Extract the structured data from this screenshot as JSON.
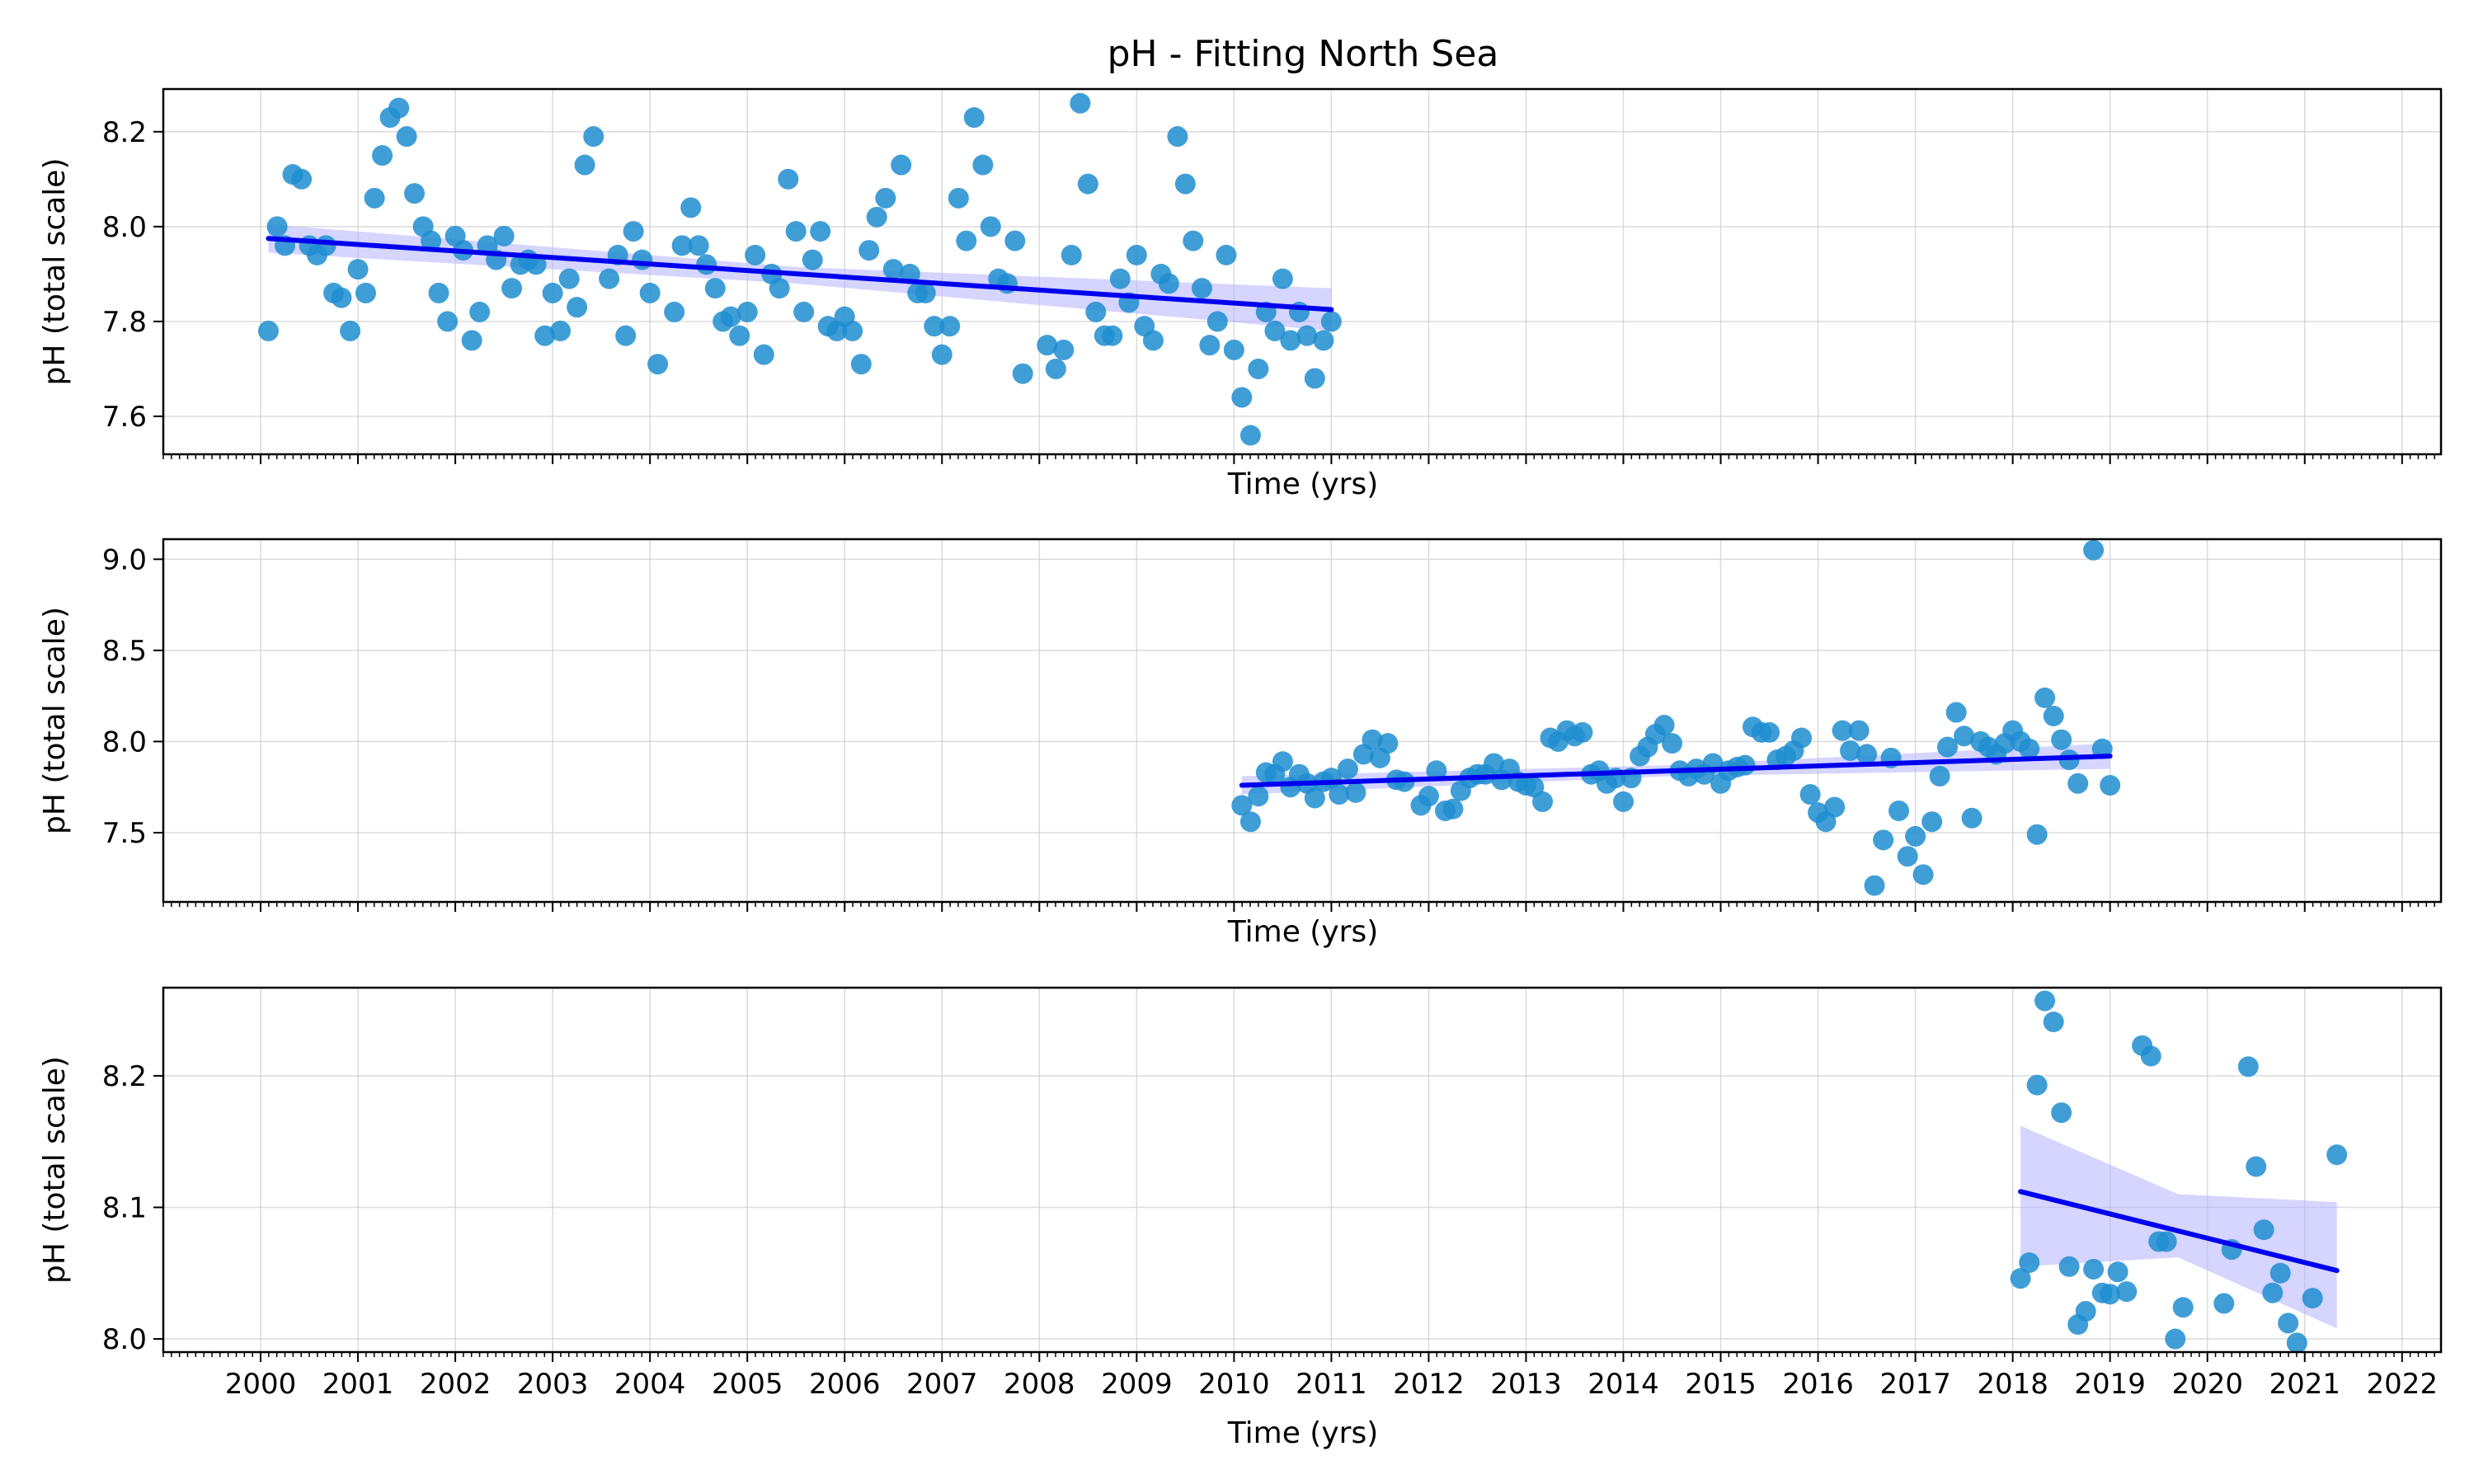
{
  "chart_data": {
    "type": "scatter",
    "title": "pH - Fitting North Sea",
    "xlabel": "Time (yrs)",
    "x_ticks": [
      "2000",
      "2001",
      "2002",
      "2003",
      "2004",
      "2005",
      "2006",
      "2007",
      "2008",
      "2009",
      "2010",
      "2011",
      "2012",
      "2013",
      "2014",
      "2015",
      "2016",
      "2017",
      "2018",
      "2019",
      "2020",
      "2021",
      "2022"
    ],
    "x_range": [
      1999,
      2022.4
    ],
    "grid": true,
    "colors": {
      "points": "#1f8dd0",
      "fit": "#0000ee",
      "band": "#b3b3ff"
    },
    "panels": [
      {
        "ylabel": "pH (total scale)",
        "xlabel": "Time (yrs)",
        "ylim": [
          7.52,
          8.29
        ],
        "yticks": [
          7.6,
          7.8,
          8.0,
          8.2
        ],
        "ytick_labels": [
          "7.6",
          "7.8",
          "8.0",
          "8.2"
        ],
        "fit": {
          "x": [
            2000.08,
            2011.0
          ],
          "y": [
            7.975,
            7.825
          ]
        },
        "band": {
          "x": [
            2000.08,
            2005.5,
            2011.0
          ],
          "upper": [
            8.005,
            7.915,
            7.87
          ],
          "lower": [
            7.945,
            7.88,
            7.78
          ]
        },
        "points": [
          [
            2000.08,
            7.78
          ],
          [
            2000.17,
            8.0
          ],
          [
            2000.25,
            7.96
          ],
          [
            2000.33,
            8.11
          ],
          [
            2000.42,
            8.1
          ],
          [
            2000.5,
            7.96
          ],
          [
            2000.58,
            7.94
          ],
          [
            2000.67,
            7.96
          ],
          [
            2000.75,
            7.86
          ],
          [
            2000.83,
            7.85
          ],
          [
            2000.92,
            7.78
          ],
          [
            2001.0,
            7.91
          ],
          [
            2001.08,
            7.86
          ],
          [
            2001.17,
            8.06
          ],
          [
            2001.25,
            8.15
          ],
          [
            2001.33,
            8.23
          ],
          [
            2001.42,
            8.25
          ],
          [
            2001.5,
            8.19
          ],
          [
            2001.58,
            8.07
          ],
          [
            2001.67,
            8.0
          ],
          [
            2001.75,
            7.97
          ],
          [
            2001.83,
            7.86
          ],
          [
            2001.92,
            7.8
          ],
          [
            2002.0,
            7.98
          ],
          [
            2002.08,
            7.95
          ],
          [
            2002.17,
            7.76
          ],
          [
            2002.25,
            7.82
          ],
          [
            2002.33,
            7.96
          ],
          [
            2002.42,
            7.93
          ],
          [
            2002.5,
            7.98
          ],
          [
            2002.58,
            7.87
          ],
          [
            2002.67,
            7.92
          ],
          [
            2002.75,
            7.93
          ],
          [
            2002.83,
            7.92
          ],
          [
            2002.92,
            7.77
          ],
          [
            2003.0,
            7.86
          ],
          [
            2003.08,
            7.78
          ],
          [
            2003.17,
            7.89
          ],
          [
            2003.25,
            7.83
          ],
          [
            2003.33,
            8.13
          ],
          [
            2003.42,
            8.19
          ],
          [
            2003.58,
            7.89
          ],
          [
            2003.67,
            7.94
          ],
          [
            2003.75,
            7.77
          ],
          [
            2003.83,
            7.99
          ],
          [
            2003.92,
            7.93
          ],
          [
            2004.0,
            7.86
          ],
          [
            2004.08,
            7.71
          ],
          [
            2004.25,
            7.82
          ],
          [
            2004.33,
            7.96
          ],
          [
            2004.42,
            8.04
          ],
          [
            2004.5,
            7.96
          ],
          [
            2004.58,
            7.92
          ],
          [
            2004.67,
            7.87
          ],
          [
            2004.75,
            7.8
          ],
          [
            2004.83,
            7.81
          ],
          [
            2004.92,
            7.77
          ],
          [
            2005.0,
            7.82
          ],
          [
            2005.08,
            7.94
          ],
          [
            2005.17,
            7.73
          ],
          [
            2005.25,
            7.9
          ],
          [
            2005.33,
            7.87
          ],
          [
            2005.42,
            8.1
          ],
          [
            2005.5,
            7.99
          ],
          [
            2005.58,
            7.82
          ],
          [
            2005.67,
            7.93
          ],
          [
            2005.75,
            7.99
          ],
          [
            2005.83,
            7.79
          ],
          [
            2005.92,
            7.78
          ],
          [
            2006.0,
            7.81
          ],
          [
            2006.08,
            7.78
          ],
          [
            2006.17,
            7.71
          ],
          [
            2006.25,
            7.95
          ],
          [
            2006.33,
            8.02
          ],
          [
            2006.42,
            8.06
          ],
          [
            2006.5,
            7.91
          ],
          [
            2006.58,
            8.13
          ],
          [
            2006.67,
            7.9
          ],
          [
            2006.75,
            7.86
          ],
          [
            2006.83,
            7.86
          ],
          [
            2006.92,
            7.79
          ],
          [
            2007.0,
            7.73
          ],
          [
            2007.08,
            7.79
          ],
          [
            2007.17,
            8.06
          ],
          [
            2007.25,
            7.97
          ],
          [
            2007.33,
            8.23
          ],
          [
            2007.42,
            8.13
          ],
          [
            2007.5,
            8.0
          ],
          [
            2007.58,
            7.89
          ],
          [
            2007.67,
            7.88
          ],
          [
            2007.75,
            7.97
          ],
          [
            2007.83,
            7.69
          ],
          [
            2008.08,
            7.75
          ],
          [
            2008.17,
            7.7
          ],
          [
            2008.25,
            7.74
          ],
          [
            2008.33,
            7.94
          ],
          [
            2008.42,
            8.26
          ],
          [
            2008.5,
            8.09
          ],
          [
            2008.58,
            7.82
          ],
          [
            2008.67,
            7.77
          ],
          [
            2008.75,
            7.77
          ],
          [
            2008.83,
            7.89
          ],
          [
            2008.92,
            7.84
          ],
          [
            2009.0,
            7.94
          ],
          [
            2009.08,
            7.79
          ],
          [
            2009.17,
            7.76
          ],
          [
            2009.25,
            7.9
          ],
          [
            2009.33,
            7.88
          ],
          [
            2009.42,
            8.19
          ],
          [
            2009.5,
            8.09
          ],
          [
            2009.58,
            7.97
          ],
          [
            2009.67,
            7.87
          ],
          [
            2009.75,
            7.75
          ],
          [
            2009.83,
            7.8
          ],
          [
            2009.92,
            7.94
          ],
          [
            2010.0,
            7.74
          ],
          [
            2010.08,
            7.64
          ],
          [
            2010.17,
            7.56
          ],
          [
            2010.25,
            7.7
          ],
          [
            2010.33,
            7.82
          ],
          [
            2010.42,
            7.78
          ],
          [
            2010.5,
            7.89
          ],
          [
            2010.58,
            7.76
          ],
          [
            2010.67,
            7.82
          ],
          [
            2010.75,
            7.77
          ],
          [
            2010.83,
            7.68
          ],
          [
            2010.92,
            7.76
          ],
          [
            2011.0,
            7.8
          ]
        ]
      },
      {
        "ylabel": "pH (total scale)",
        "xlabel": "Time (yrs)",
        "ylim": [
          7.12,
          9.11
        ],
        "yticks": [
          7.5,
          8.0,
          8.5,
          9.0
        ],
        "ytick_labels": [
          "7.5",
          "8.0",
          "8.5",
          "9.0"
        ],
        "fit": {
          "x": [
            2010.08,
            2019.0
          ],
          "y": [
            7.76,
            7.92
          ]
        },
        "band": {
          "x": [
            2010.08,
            2014.5,
            2019.0
          ],
          "upper": [
            7.81,
            7.87,
            7.99
          ],
          "lower": [
            7.71,
            7.81,
            7.85
          ]
        },
        "points": [
          [
            2010.08,
            7.65
          ],
          [
            2010.17,
            7.56
          ],
          [
            2010.25,
            7.7
          ],
          [
            2010.33,
            7.83
          ],
          [
            2010.42,
            7.82
          ],
          [
            2010.5,
            7.89
          ],
          [
            2010.58,
            7.75
          ],
          [
            2010.67,
            7.82
          ],
          [
            2010.75,
            7.77
          ],
          [
            2010.83,
            7.69
          ],
          [
            2010.92,
            7.78
          ],
          [
            2011.0,
            7.8
          ],
          [
            2011.08,
            7.71
          ],
          [
            2011.17,
            7.85
          ],
          [
            2011.25,
            7.72
          ],
          [
            2011.33,
            7.93
          ],
          [
            2011.42,
            8.01
          ],
          [
            2011.5,
            7.91
          ],
          [
            2011.58,
            7.99
          ],
          [
            2011.67,
            7.79
          ],
          [
            2011.75,
            7.78
          ],
          [
            2011.92,
            7.65
          ],
          [
            2012.0,
            7.7
          ],
          [
            2012.08,
            7.84
          ],
          [
            2012.17,
            7.62
          ],
          [
            2012.25,
            7.63
          ],
          [
            2012.33,
            7.73
          ],
          [
            2012.42,
            7.8
          ],
          [
            2012.5,
            7.82
          ],
          [
            2012.58,
            7.82
          ],
          [
            2012.67,
            7.88
          ],
          [
            2012.75,
            7.79
          ],
          [
            2012.83,
            7.85
          ],
          [
            2012.92,
            7.78
          ],
          [
            2013.0,
            7.76
          ],
          [
            2013.08,
            7.75
          ],
          [
            2013.17,
            7.67
          ],
          [
            2013.25,
            8.02
          ],
          [
            2013.33,
            8.0
          ],
          [
            2013.42,
            8.06
          ],
          [
            2013.5,
            8.03
          ],
          [
            2013.58,
            8.05
          ],
          [
            2013.67,
            7.82
          ],
          [
            2013.75,
            7.84
          ],
          [
            2013.83,
            7.77
          ],
          [
            2013.92,
            7.8
          ],
          [
            2014.0,
            7.67
          ],
          [
            2014.08,
            7.8
          ],
          [
            2014.17,
            7.92
          ],
          [
            2014.25,
            7.97
          ],
          [
            2014.33,
            8.04
          ],
          [
            2014.42,
            8.09
          ],
          [
            2014.5,
            7.99
          ],
          [
            2014.58,
            7.84
          ],
          [
            2014.67,
            7.81
          ],
          [
            2014.75,
            7.85
          ],
          [
            2014.83,
            7.82
          ],
          [
            2014.92,
            7.88
          ],
          [
            2015.0,
            7.77
          ],
          [
            2015.08,
            7.84
          ],
          [
            2015.17,
            7.86
          ],
          [
            2015.25,
            7.87
          ],
          [
            2015.33,
            8.08
          ],
          [
            2015.42,
            8.05
          ],
          [
            2015.5,
            8.05
          ],
          [
            2015.58,
            7.9
          ],
          [
            2015.67,
            7.92
          ],
          [
            2015.75,
            7.95
          ],
          [
            2015.83,
            8.02
          ],
          [
            2015.92,
            7.71
          ],
          [
            2016.0,
            7.61
          ],
          [
            2016.08,
            7.56
          ],
          [
            2016.17,
            7.64
          ],
          [
            2016.25,
            8.06
          ],
          [
            2016.33,
            7.95
          ],
          [
            2016.42,
            8.06
          ],
          [
            2016.5,
            7.93
          ],
          [
            2016.58,
            7.21
          ],
          [
            2016.67,
            7.46
          ],
          [
            2016.75,
            7.91
          ],
          [
            2016.83,
            7.62
          ],
          [
            2016.92,
            7.37
          ],
          [
            2017.0,
            7.48
          ],
          [
            2017.08,
            7.27
          ],
          [
            2017.17,
            7.56
          ],
          [
            2017.25,
            7.81
          ],
          [
            2017.33,
            7.97
          ],
          [
            2017.42,
            8.16
          ],
          [
            2017.5,
            8.03
          ],
          [
            2017.58,
            7.58
          ],
          [
            2017.67,
            8.0
          ],
          [
            2017.75,
            7.97
          ],
          [
            2017.83,
            7.93
          ],
          [
            2017.92,
            7.99
          ],
          [
            2018.0,
            8.06
          ],
          [
            2018.08,
            8.0
          ],
          [
            2018.17,
            7.96
          ],
          [
            2018.25,
            7.49
          ],
          [
            2018.33,
            8.24
          ],
          [
            2018.42,
            8.14
          ],
          [
            2018.5,
            8.01
          ],
          [
            2018.58,
            7.9
          ],
          [
            2018.67,
            7.77
          ],
          [
            2018.83,
            9.05
          ],
          [
            2018.92,
            7.96
          ],
          [
            2019.0,
            7.76
          ]
        ]
      },
      {
        "ylabel": "pH (total scale)",
        "xlabel": "Time (yrs)",
        "ylim": [
          7.99,
          8.267
        ],
        "yticks": [
          8.0,
          8.1,
          8.2
        ],
        "ytick_labels": [
          "8.0",
          "8.1",
          "8.2"
        ],
        "fit": {
          "x": [
            2018.08,
            2021.33
          ],
          "y": [
            8.112,
            8.052
          ]
        },
        "band": {
          "x": [
            2018.08,
            2019.7,
            2021.33
          ],
          "upper": [
            8.162,
            8.11,
            8.104
          ],
          "lower": [
            8.055,
            8.062,
            8.008
          ]
        },
        "points": [
          [
            2018.08,
            8.046
          ],
          [
            2018.17,
            8.058
          ],
          [
            2018.25,
            8.193
          ],
          [
            2018.33,
            8.257
          ],
          [
            2018.42,
            8.241
          ],
          [
            2018.5,
            8.172
          ],
          [
            2018.58,
            8.055
          ],
          [
            2018.67,
            8.011
          ],
          [
            2018.75,
            8.021
          ],
          [
            2018.83,
            8.053
          ],
          [
            2018.92,
            8.035
          ],
          [
            2019.0,
            8.034
          ],
          [
            2019.08,
            8.051
          ],
          [
            2019.17,
            8.036
          ],
          [
            2019.33,
            8.223
          ],
          [
            2019.42,
            8.215
          ],
          [
            2019.5,
            8.074
          ],
          [
            2019.58,
            8.074
          ],
          [
            2019.67,
            8.0
          ],
          [
            2019.75,
            8.024
          ],
          [
            2020.17,
            8.027
          ],
          [
            2020.25,
            8.068
          ],
          [
            2020.42,
            8.207
          ],
          [
            2020.5,
            8.131
          ],
          [
            2020.58,
            8.083
          ],
          [
            2020.67,
            8.035
          ],
          [
            2020.75,
            8.05
          ],
          [
            2020.83,
            8.012
          ],
          [
            2020.92,
            7.997
          ],
          [
            2021.08,
            8.031
          ],
          [
            2021.33,
            8.14
          ]
        ]
      }
    ]
  }
}
